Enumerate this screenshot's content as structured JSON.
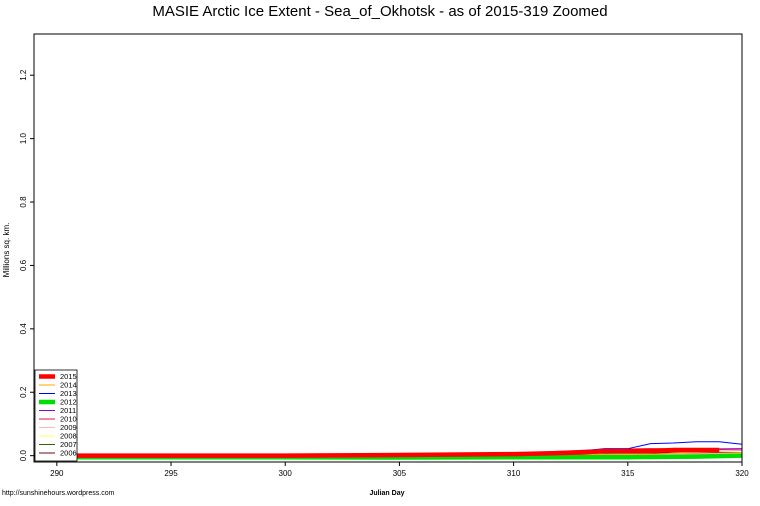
{
  "chart_data": {
    "type": "line",
    "title": "MASIE Arctic Ice Extent - Sea_of_Okhotsk - as of 2015-319 Zoomed",
    "xlabel": "Julian Day",
    "ylabel": "Millions sq. km.",
    "credit": "http://sunshinehours.wordpress.com",
    "xlim": [
      289,
      320
    ],
    "ylim": [
      -0.02,
      1.33
    ],
    "xticks": [
      290,
      295,
      300,
      305,
      310,
      315,
      320
    ],
    "yticks": [
      0.0,
      0.2,
      0.4,
      0.6,
      0.8,
      1.0,
      1.2
    ],
    "ytick_labels": [
      "0.0",
      "0.2",
      "0.4",
      "0.6",
      "0.8",
      "1.0",
      "1.2"
    ],
    "legend_position": "bottom-left",
    "grid": false,
    "series": [
      {
        "name": "2015",
        "color": "#ff0000",
        "width": 4.5,
        "x": [
          289,
          300,
          305,
          310,
          312,
          313,
          314,
          315,
          316,
          317,
          318,
          319
        ],
        "y": [
          0.0,
          0.0,
          0.002,
          0.005,
          0.008,
          0.01,
          0.015,
          0.015,
          0.015,
          0.018,
          0.018,
          0.018
        ]
      },
      {
        "name": "2014",
        "color": "#ffa500",
        "width": 1,
        "x": [
          289,
          300,
          310,
          316,
          318,
          319,
          320
        ],
        "y": [
          0.0,
          0.0,
          0.002,
          0.005,
          0.01,
          0.012,
          0.01
        ]
      },
      {
        "name": "2013",
        "color": "#0000ff",
        "width": 1,
        "x": [
          289,
          297,
          300,
          305,
          307,
          308,
          310,
          312,
          313,
          314,
          315,
          316,
          317,
          318,
          319,
          320
        ],
        "y": [
          0.0,
          0.002,
          0.002,
          0.005,
          0.002,
          0.005,
          0.008,
          0.01,
          0.015,
          0.022,
          0.022,
          0.038,
          0.04,
          0.044,
          0.044,
          0.036
        ]
      },
      {
        "name": "2012",
        "color": "#00dd00",
        "width": 4.5,
        "x": [
          289,
          300,
          305,
          310,
          315,
          318,
          320
        ],
        "y": [
          -0.005,
          -0.005,
          -0.006,
          -0.005,
          -0.005,
          -0.003,
          0.0
        ]
      },
      {
        "name": "2011",
        "color": "#9400d3",
        "width": 1,
        "x": [
          289,
          300,
          305,
          310,
          315,
          317,
          320
        ],
        "y": [
          0.002,
          0.003,
          0.005,
          0.006,
          0.012,
          0.02,
          0.022
        ]
      },
      {
        "name": "2010",
        "color": "#dc143c",
        "width": 1,
        "x": [
          289,
          300,
          305,
          310,
          314,
          316,
          318,
          320
        ],
        "y": [
          0.0,
          0.002,
          0.004,
          0.008,
          0.02,
          0.022,
          0.02,
          0.018
        ]
      },
      {
        "name": "2009",
        "color": "#ffb6c1",
        "width": 1,
        "x": [
          289,
          300,
          310,
          315,
          320
        ],
        "y": [
          0.0,
          0.0,
          0.002,
          0.004,
          0.006
        ]
      },
      {
        "name": "2008",
        "color": "#ffff66",
        "width": 1,
        "x": [
          289,
          300,
          310,
          315,
          320
        ],
        "y": [
          0.0,
          0.0,
          0.001,
          0.002,
          0.004
        ]
      },
      {
        "name": "2007",
        "color": "#3a5f0b",
        "width": 1,
        "x": [
          289,
          300,
          310,
          315,
          320
        ],
        "y": [
          -0.003,
          -0.003,
          -0.002,
          -0.002,
          0.0
        ]
      },
      {
        "name": "2006",
        "color": "#6b0d0d",
        "width": 1,
        "x": [
          289,
          300,
          305,
          310,
          315,
          320
        ],
        "y": [
          0.004,
          0.004,
          0.006,
          0.006,
          0.008,
          0.01
        ]
      }
    ]
  }
}
